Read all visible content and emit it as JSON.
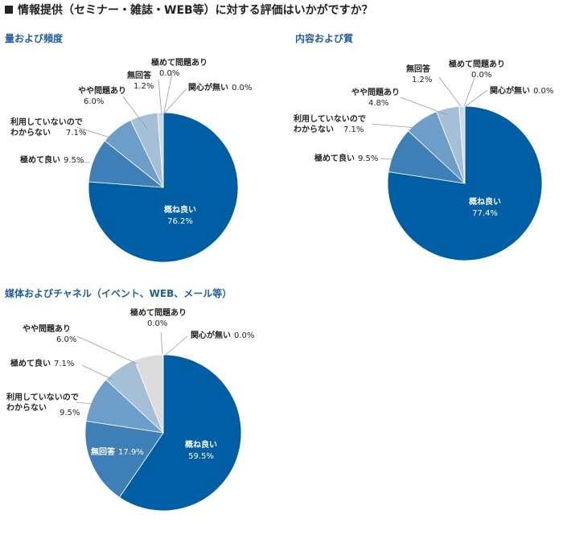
{
  "page_title": "情報提供（セミナー・雑誌・WEB等）に対する評価はいかがですか？",
  "chart_data": [
    {
      "type": "pie",
      "title": "量および頻度",
      "slices": [
        {
          "label": "概ね良い",
          "value": 76.2,
          "display": "76.2%",
          "color": "#005fa4"
        },
        {
          "label": "極めて良い",
          "value": 9.5,
          "display": "9.5%",
          "color": "#3d7fb6"
        },
        {
          "label": "利用していないのでわからない",
          "lines": [
            "利用していないので",
            "わからない"
          ],
          "value": 7.1,
          "display": "7.1%",
          "color": "#6c9ec9"
        },
        {
          "label": "やや問題あり",
          "value": 6.0,
          "display": "6.0%",
          "color": "#a5bfd7"
        },
        {
          "label": "無回答",
          "value": 1.2,
          "display": "1.2%",
          "color": "#cfd9e4"
        },
        {
          "label": "極めて問題あり",
          "value": 0.0,
          "display": "0.0%",
          "color": "#e6e6e6"
        },
        {
          "label": "関心が無い",
          "value": 0.0,
          "display": "0.0%",
          "color": "#e6e6e6"
        }
      ]
    },
    {
      "type": "pie",
      "title": "内容および質",
      "slices": [
        {
          "label": "概ね良い",
          "value": 77.4,
          "display": "77.4%",
          "color": "#005fa4"
        },
        {
          "label": "極めて良い",
          "value": 9.5,
          "display": "9.5%",
          "color": "#3d7fb6"
        },
        {
          "label": "利用していないのでわからない",
          "lines": [
            "利用していないので",
            "わからない"
          ],
          "value": 7.1,
          "display": "7.1%",
          "color": "#6c9ec9"
        },
        {
          "label": "やや問題あり",
          "value": 4.8,
          "display": "4.8%",
          "color": "#a5bfd7"
        },
        {
          "label": "無回答",
          "value": 1.2,
          "display": "1.2%",
          "color": "#cfd9e4"
        },
        {
          "label": "極めて問題あり",
          "value": 0.0,
          "display": "0.0%",
          "color": "#e6e6e6"
        },
        {
          "label": "関心が無い",
          "value": 0.0,
          "display": "0.0%",
          "color": "#e6e6e6"
        }
      ]
    },
    {
      "type": "pie",
      "title": "媒体およびチャネル（イベント、WEB、メール等）",
      "slices": [
        {
          "label": "概ね良い",
          "value": 59.5,
          "display": "59.5%",
          "color": "#005fa4"
        },
        {
          "label": "無回答",
          "value": 17.9,
          "display": "17.9%",
          "color": "#3d7fb6"
        },
        {
          "label": "利用していないのでわからない",
          "lines": [
            "利用していないので",
            "わからない"
          ],
          "value": 9.5,
          "display": "9.5%",
          "color": "#6c9ec9"
        },
        {
          "label": "極めて良い",
          "value": 7.1,
          "display": "7.1%",
          "color": "#a5bfd7"
        },
        {
          "label": "やや問題あり",
          "value": 6.0,
          "display": "6.0%",
          "color": "#dcdcdc"
        },
        {
          "label": "極めて問題あり",
          "value": 0.0,
          "display": "0.0%",
          "color": "#e6e6e6"
        },
        {
          "label": "関心が無い",
          "value": 0.0,
          "display": "0.0%",
          "color": "#e6e6e6"
        }
      ]
    }
  ],
  "colors": {
    "title_text": "#1f5fa0",
    "leader_line": "#9a9a9a"
  }
}
